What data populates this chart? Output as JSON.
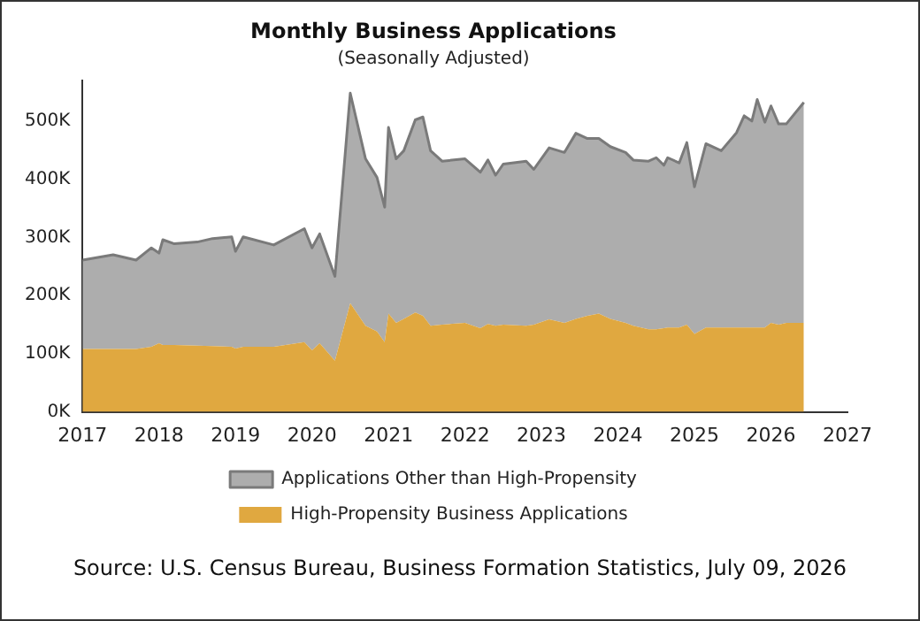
{
  "chart_data": {
    "type": "area",
    "title": "Monthly Business Applications",
    "subtitle": "(Seasonally Adjusted)",
    "stacked": true,
    "x": [
      2017.0,
      2017.4,
      2017.7,
      2017.9,
      2018.0,
      2018.05,
      2018.2,
      2018.5,
      2018.7,
      2018.95,
      2019.0,
      2019.1,
      2019.5,
      2019.9,
      2020.0,
      2020.1,
      2020.3,
      2020.5,
      2020.7,
      2020.85,
      2020.95,
      2021.0,
      2021.1,
      2021.2,
      2021.35,
      2021.45,
      2021.55,
      2021.7,
      2022.0,
      2022.2,
      2022.3,
      2022.4,
      2022.5,
      2022.8,
      2022.9,
      2023.1,
      2023.3,
      2023.45,
      2023.6,
      2023.75,
      2023.9,
      2024.1,
      2024.2,
      2024.4,
      2024.5,
      2024.6,
      2024.65,
      2024.8,
      2024.9,
      2025.0,
      2025.15,
      2025.35,
      2025.55,
      2025.65,
      2025.75,
      2025.82,
      2025.92,
      2026.0,
      2026.1,
      2026.2,
      2026.43
    ],
    "series": [
      {
        "name": "High-Propensity Business Applications",
        "color": "#e0a840",
        "values": [
          108000,
          108000,
          108000,
          112000,
          118000,
          115000,
          115000,
          114000,
          113000,
          112000,
          109000,
          112000,
          112000,
          120000,
          106000,
          118000,
          88000,
          187000,
          148000,
          138000,
          120000,
          169000,
          153000,
          160000,
          171000,
          165000,
          148000,
          150000,
          153000,
          144000,
          151000,
          148000,
          150000,
          148000,
          150000,
          159000,
          153000,
          160000,
          165000,
          169000,
          160000,
          153000,
          148000,
          142000,
          142000,
          144000,
          145000,
          145000,
          150000,
          134000,
          145000,
          145000,
          145000,
          145000,
          145000,
          145000,
          145000,
          153000,
          150000,
          153000,
          153000
        ]
      },
      {
        "name": "Applications Other than High-Propensity",
        "color": "#adadad",
        "values": [
          153000,
          162000,
          153000,
          170000,
          155000,
          181000,
          174000,
          178000,
          185000,
          189000,
          167000,
          189000,
          175000,
          195000,
          176000,
          188000,
          145000,
          361000,
          287000,
          265000,
          232000,
          320000,
          282000,
          289000,
          331000,
          342000,
          301000,
          281000,
          282000,
          268000,
          282000,
          259000,
          276000,
          283000,
          267000,
          295000,
          293000,
          319000,
          305000,
          301000,
          296000,
          293000,
          285000,
          289000,
          295000,
          280000,
          292000,
          283000,
          313000,
          253000,
          316000,
          304000,
          335000,
          364000,
          355000,
          392000,
          353000,
          373000,
          345000,
          342000,
          379000
        ]
      }
    ],
    "xlim": [
      2017,
      2027
    ],
    "xticks": [
      2017,
      2018,
      2019,
      2020,
      2021,
      2022,
      2023,
      2024,
      2025,
      2026,
      2027
    ],
    "ylim": [
      0,
      570000
    ],
    "yticks": [
      {
        "value": 0,
        "label": "0K"
      },
      {
        "value": 100000,
        "label": "100K"
      },
      {
        "value": 200000,
        "label": "200K"
      },
      {
        "value": 300000,
        "label": "300K"
      },
      {
        "value": 400000,
        "label": "400K"
      },
      {
        "value": 500000,
        "label": "500K"
      }
    ],
    "grid": false,
    "legend": "bottom",
    "annotations": [
      "Source: U.S. Census Bureau, Business Formation Statistics, July 09, 2026"
    ]
  }
}
